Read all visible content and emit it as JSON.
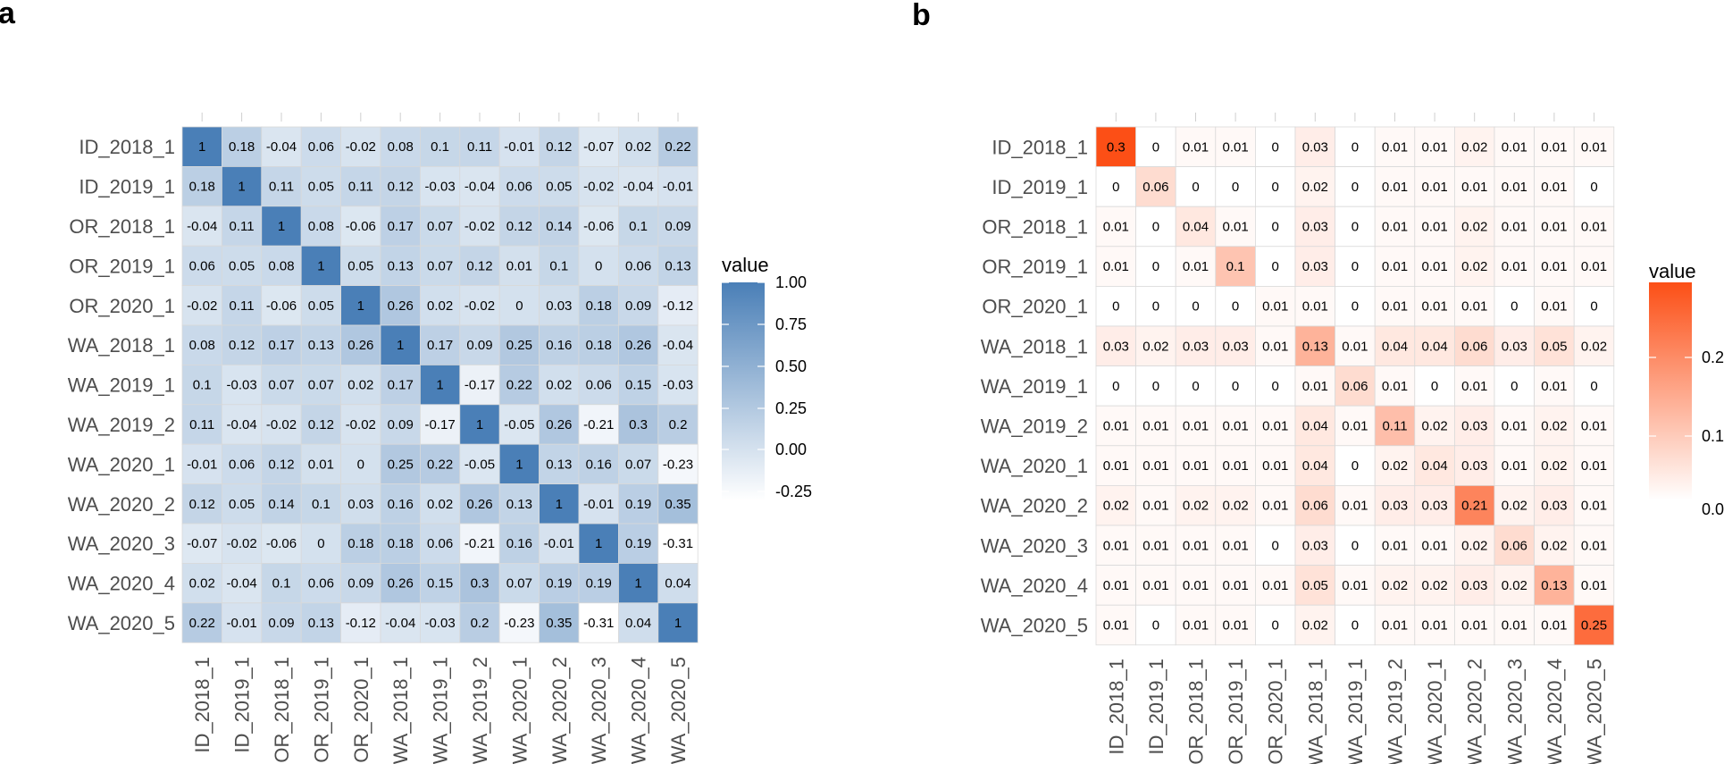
{
  "chart_data": [
    {
      "type": "heatmap",
      "panel": "a",
      "labels": [
        "ID_2018_1",
        "ID_2019_1",
        "OR_2018_1",
        "OR_2019_1",
        "OR_2020_1",
        "WA_2018_1",
        "WA_2019_1",
        "WA_2019_2",
        "WA_2020_1",
        "WA_2020_2",
        "WA_2020_3",
        "WA_2020_4",
        "WA_2020_5"
      ],
      "matrix": [
        [
          1,
          0.18,
          -0.04,
          0.06,
          -0.02,
          0.08,
          0.1,
          0.11,
          -0.01,
          0.12,
          -0.07,
          0.02,
          0.22
        ],
        [
          0.18,
          1,
          0.11,
          0.05,
          0.11,
          0.12,
          -0.03,
          -0.04,
          0.06,
          0.05,
          -0.02,
          -0.04,
          -0.01
        ],
        [
          -0.04,
          0.11,
          1,
          0.08,
          -0.06,
          0.17,
          0.07,
          -0.02,
          0.12,
          0.14,
          -0.06,
          0.1,
          0.09
        ],
        [
          0.06,
          0.05,
          0.08,
          1,
          0.05,
          0.13,
          0.07,
          0.12,
          0.01,
          0.1,
          0,
          0.06,
          0.13
        ],
        [
          -0.02,
          0.11,
          -0.06,
          0.05,
          1,
          0.26,
          0.02,
          -0.02,
          0,
          0.03,
          0.18,
          0.09,
          -0.12
        ],
        [
          0.08,
          0.12,
          0.17,
          0.13,
          0.26,
          1,
          0.17,
          0.09,
          0.25,
          0.16,
          0.18,
          0.26,
          -0.04
        ],
        [
          0.1,
          -0.03,
          0.07,
          0.07,
          0.02,
          0.17,
          1,
          -0.17,
          0.22,
          0.02,
          0.06,
          0.15,
          -0.03
        ],
        [
          0.11,
          -0.04,
          -0.02,
          0.12,
          -0.02,
          0.09,
          -0.17,
          1,
          -0.05,
          0.26,
          -0.21,
          0.3,
          0.2
        ],
        [
          -0.01,
          0.06,
          0.12,
          0.01,
          0,
          0.25,
          0.22,
          -0.05,
          1,
          0.13,
          0.16,
          0.07,
          -0.23
        ],
        [
          0.12,
          0.05,
          0.14,
          0.1,
          0.03,
          0.16,
          0.02,
          0.26,
          0.13,
          1,
          -0.01,
          0.19,
          0.35
        ],
        [
          -0.07,
          -0.02,
          -0.06,
          0,
          0.18,
          0.18,
          0.06,
          -0.21,
          0.16,
          -0.01,
          1,
          0.19,
          -0.31
        ],
        [
          0.02,
          -0.04,
          0.1,
          0.06,
          0.09,
          0.26,
          0.15,
          0.3,
          0.07,
          0.19,
          0.19,
          1,
          0.04
        ],
        [
          0.22,
          -0.01,
          0.09,
          0.13,
          -0.12,
          -0.04,
          -0.03,
          0.2,
          -0.23,
          0.35,
          -0.31,
          0.04,
          1
        ]
      ],
      "legend": {
        "title": "value",
        "ticks": [
          "1.00",
          "0.75",
          "0.50",
          "0.25",
          "0.00",
          "-0.25"
        ],
        "tick_values": [
          1,
          0.75,
          0.5,
          0.25,
          0,
          -0.25
        ],
        "range": [
          -0.31,
          1
        ]
      },
      "colors": {
        "low": "#ffffff",
        "high": "#4a7fb7"
      }
    },
    {
      "type": "heatmap",
      "panel": "b",
      "labels": [
        "ID_2018_1",
        "ID_2019_1",
        "OR_2018_1",
        "OR_2019_1",
        "OR_2020_1",
        "WA_2018_1",
        "WA_2019_1",
        "WA_2019_2",
        "WA_2020_1",
        "WA_2020_2",
        "WA_2020_3",
        "WA_2020_4",
        "WA_2020_5"
      ],
      "matrix": [
        [
          0.3,
          0,
          0.01,
          0.01,
          0,
          0.03,
          0,
          0.01,
          0.01,
          0.02,
          0.01,
          0.01,
          0.01
        ],
        [
          0,
          0.06,
          0,
          0,
          0,
          0.02,
          0,
          0.01,
          0.01,
          0.01,
          0.01,
          0.01,
          0
        ],
        [
          0.01,
          0,
          0.04,
          0.01,
          0,
          0.03,
          0,
          0.01,
          0.01,
          0.02,
          0.01,
          0.01,
          0.01
        ],
        [
          0.01,
          0,
          0.01,
          0.1,
          0,
          0.03,
          0,
          0.01,
          0.01,
          0.02,
          0.01,
          0.01,
          0.01
        ],
        [
          0,
          0,
          0,
          0,
          0.01,
          0.01,
          0,
          0.01,
          0.01,
          0.01,
          0,
          0.01,
          0
        ],
        [
          0.03,
          0.02,
          0.03,
          0.03,
          0.01,
          0.13,
          0.01,
          0.04,
          0.04,
          0.06,
          0.03,
          0.05,
          0.02
        ],
        [
          0,
          0,
          0,
          0,
          0,
          0.01,
          0.06,
          0.01,
          0,
          0.01,
          0,
          0.01,
          0
        ],
        [
          0.01,
          0.01,
          0.01,
          0.01,
          0.01,
          0.04,
          0.01,
          0.11,
          0.02,
          0.03,
          0.01,
          0.02,
          0.01
        ],
        [
          0.01,
          0.01,
          0.01,
          0.01,
          0.01,
          0.04,
          0,
          0.02,
          0.04,
          0.03,
          0.01,
          0.02,
          0.01
        ],
        [
          0.02,
          0.01,
          0.02,
          0.02,
          0.01,
          0.06,
          0.01,
          0.03,
          0.03,
          0.21,
          0.02,
          0.03,
          0.01
        ],
        [
          0.01,
          0.01,
          0.01,
          0.01,
          0,
          0.03,
          0,
          0.01,
          0.01,
          0.02,
          0.06,
          0.02,
          0.01
        ],
        [
          0.01,
          0.01,
          0.01,
          0.01,
          0.01,
          0.05,
          0.01,
          0.02,
          0.02,
          0.03,
          0.02,
          0.13,
          0.01
        ],
        [
          0.01,
          0,
          0.01,
          0.01,
          0,
          0.02,
          0,
          0.01,
          0.01,
          0.01,
          0.01,
          0.01,
          0.25
        ]
      ],
      "legend": {
        "title": "value",
        "ticks": [
          "0.2",
          "0.1",
          "0.0"
        ],
        "tick_values": [
          0.2,
          0.1,
          0
        ],
        "range": [
          0,
          0.3
        ]
      },
      "colors": {
        "low": "#ffffff",
        "high": "#fc4f16"
      }
    }
  ]
}
